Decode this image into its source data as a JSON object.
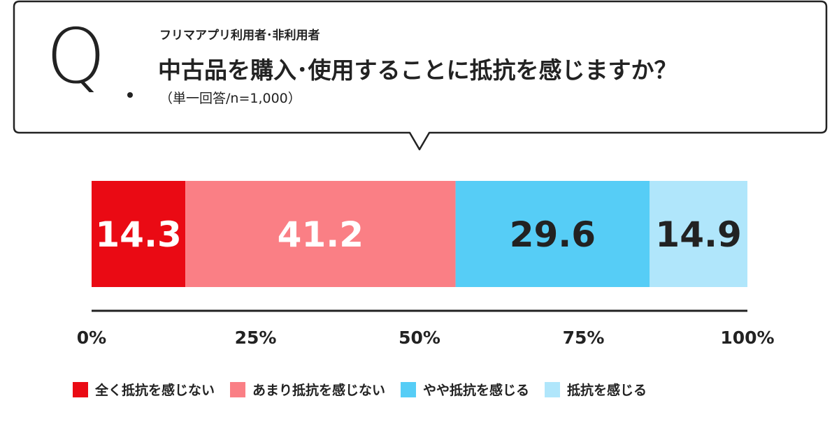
{
  "question": {
    "q_mark": "Q",
    "subtitle": "フリマアプリ利用者･非利用者",
    "title": "中古品を購入･使用することに抵抗を感じますか？",
    "note": "（単一回答/n=1,000）"
  },
  "chart_data": {
    "type": "bar",
    "orientation": "horizontal-stacked",
    "unit": "%",
    "xlim": [
      0,
      100
    ],
    "ticks": [
      "0%",
      "25%",
      "50%",
      "75%",
      "100%"
    ],
    "tick_values": [
      0,
      25,
      50,
      75,
      100
    ],
    "grid": false,
    "legend_position": "bottom",
    "series": [
      {
        "name": "全く抵抗を感じない",
        "value": 14.3,
        "label": "14.3",
        "color": "#ea0a14",
        "text_color": "#ffffff"
      },
      {
        "name": "あまり抵抗を感じない",
        "value": 41.2,
        "label": "41.2",
        "color": "#fa7f85",
        "text_color": "#ffffff"
      },
      {
        "name": "やや抵抗を感じる",
        "value": 29.6,
        "label": "29.6",
        "color": "#56cdf6",
        "text_color": "#222222"
      },
      {
        "name": "抵抗を感じる",
        "value": 14.9,
        "label": "14.9",
        "color": "#b0e6fb",
        "text_color": "#222222"
      }
    ]
  }
}
